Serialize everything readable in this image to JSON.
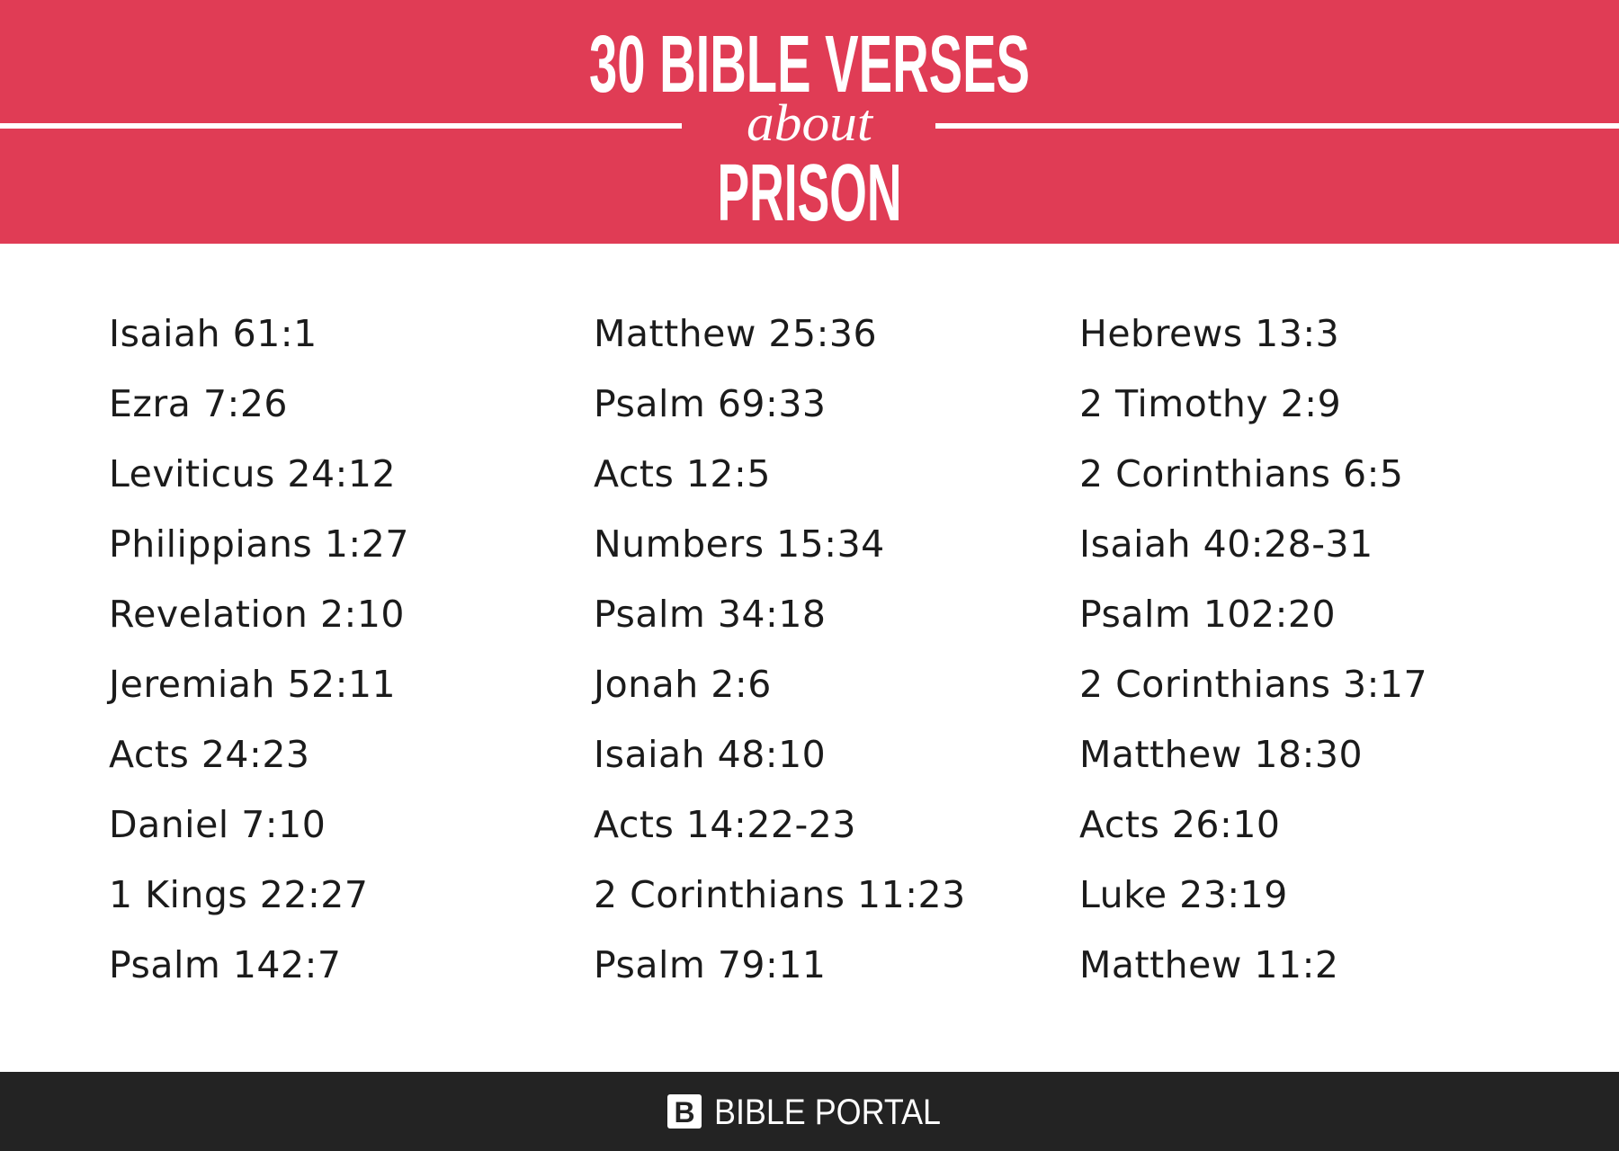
{
  "header": {
    "title_line1": "30 BIBLE VERSES",
    "connector": "about",
    "title_line2": "PRISON"
  },
  "columns": [
    [
      "Isaiah 61:1",
      "Ezra 7:26",
      "Leviticus 24:12",
      "Philippians 1:27",
      "Revelation 2:10",
      "Jeremiah 52:11",
      "Acts 24:23",
      "Daniel 7:10",
      "1 Kings 22:27",
      "Psalm 142:7"
    ],
    [
      "Matthew 25:36",
      "Psalm 69:33",
      "Acts 12:5",
      "Numbers 15:34",
      "Psalm 34:18",
      "Jonah 2:6",
      "Isaiah 48:10",
      "Acts 14:22-23",
      "2 Corinthians 11:23",
      "Psalm 79:11"
    ],
    [
      "Hebrews 13:3",
      "2 Timothy 2:9",
      "2 Corinthians 6:5",
      "Isaiah 40:28-31",
      "Psalm 102:20",
      "2 Corinthians 3:17",
      "Matthew 18:30",
      "Acts 26:10",
      "Luke 23:19",
      "Matthew 11:2"
    ]
  ],
  "footer": {
    "logo": "B",
    "brand": "BIBLE PORTAL"
  }
}
